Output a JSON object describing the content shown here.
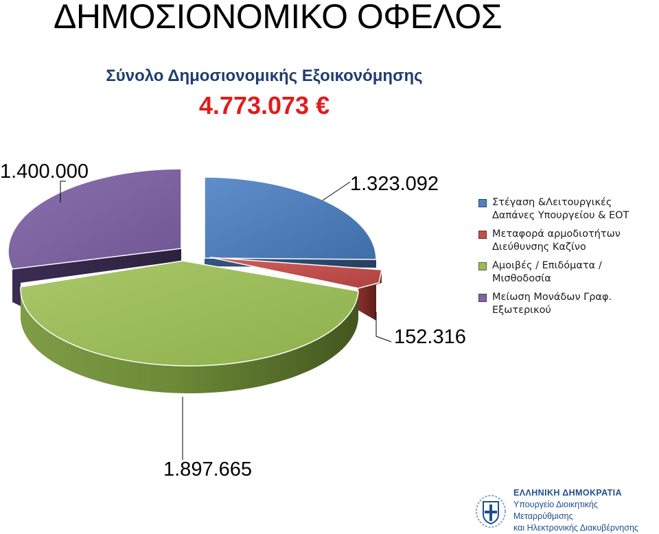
{
  "title": "ΔΗΜΟΣΙΟΝΟΜΙΚΟ ΟΦΕΛΟΣ",
  "subtitle": "Σύνολο Δημοσιονομικής Εξοικονόμησης",
  "total": "4.773.073 €",
  "chart_data": {
    "type": "pie",
    "title": "",
    "slices": [
      {
        "label": "Στέγαση &Λειτουργικές Δαπάνες Υπουργείου & ΕΟΤ",
        "value": 1323092,
        "display": "1.323.092",
        "color": "#4f81bd"
      },
      {
        "label": "Μεταφορά αρμοδιοτήτων Διεύθυνσης Καζίνο",
        "value": 152316,
        "display": "152.316",
        "color": "#c0504d"
      },
      {
        "label": "Αμοιβές / Επιδόματα / Μισθοδοσία",
        "value": 1897665,
        "display": "1.897.665",
        "color": "#9bbb59"
      },
      {
        "label": "Μείωση Μονάδων Γραφ. Εξωτερικού",
        "value": 1400000,
        "display": "1.400.000",
        "color": "#8064a2"
      }
    ],
    "legend": "right",
    "style": "3d-exploded"
  },
  "legend": [
    {
      "line1": "Στέγαση &Λειτουργικές",
      "line2": "Δαπάνες Υπουργείου & ΕΟΤ",
      "color": "#4f81bd"
    },
    {
      "line1": "Μεταφορά αρμοδιοτήτων",
      "line2": "Διεύθυνσης Καζίνο",
      "color": "#c0504d"
    },
    {
      "line1": "Αμοιβές / Επιδόματα /",
      "line2": "Μισθοδοσία",
      "color": "#9bbb59"
    },
    {
      "line1": "Μείωση Μονάδων Γραφ.",
      "line2": "Εξωτερικού",
      "color": "#8064a2"
    }
  ],
  "logo": {
    "line1": "ΕΛΛΗΝΙΚΗ ΔΗΜΟΚΡΑΤΙΑ",
    "line2": "Υπουργείο Διοικητικής Μεταρρύθμισης",
    "line3": "και Ηλεκτρονικής Διακυβέρνησης",
    "icon": "greek-coat-of-arms-icon"
  }
}
